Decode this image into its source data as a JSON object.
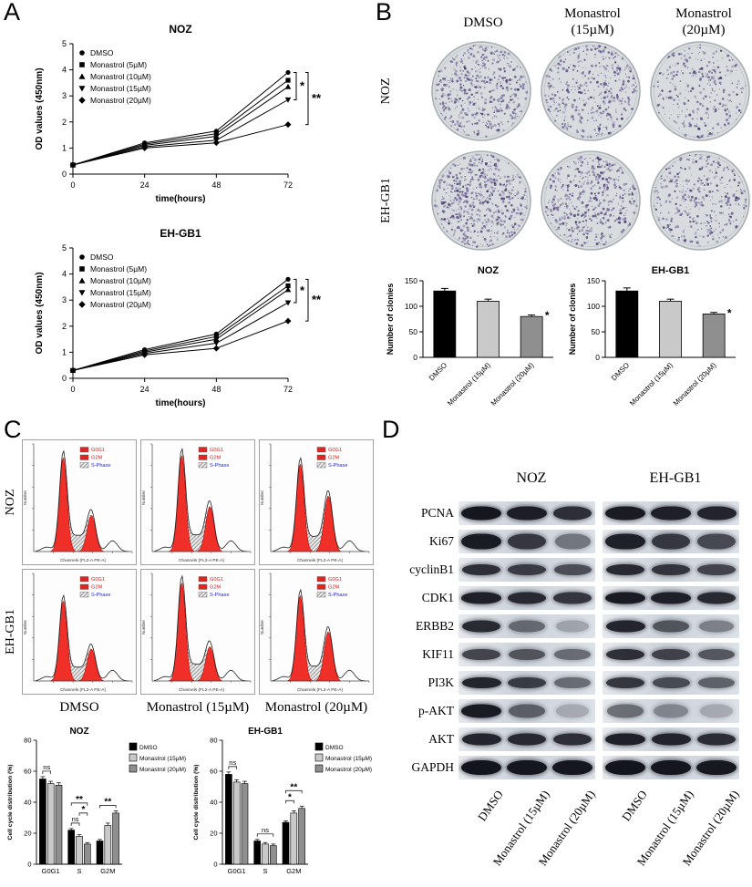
{
  "figure": {
    "background": "#ffffff",
    "panels": {
      "A": {
        "label": "A"
      },
      "B": {
        "label": "B",
        "column_headers": [
          "DMSO",
          "Monastrol\n(15µM)",
          "Monastrol\n(20µM)"
        ],
        "row_labels": [
          "NOZ",
          "EH-GB1"
        ],
        "dishes": [
          {
            "row": "NOZ",
            "col": "DMSO",
            "density": 520
          },
          {
            "row": "NOZ",
            "col": "Monastrol (15µM)",
            "density": 430
          },
          {
            "row": "NOZ",
            "col": "Monastrol (20µM)",
            "density": 310
          },
          {
            "row": "EH-GB1",
            "col": "DMSO",
            "density": 620
          },
          {
            "row": "EH-GB1",
            "col": "Monastrol (15µM)",
            "density": 520
          },
          {
            "row": "EH-GB1",
            "col": "Monastrol (20µM)",
            "density": 390
          }
        ]
      },
      "C": {
        "label": "C",
        "row_labels": [
          "NOZ",
          "EH-GB1"
        ],
        "column_labels": [
          "DMSO",
          "Monastrol (15µM)",
          "Monastrol (20µM)"
        ],
        "flow": {
          "legend": [
            {
              "label": "G0G1",
              "swatch": "solid",
              "color": "#e02420"
            },
            {
              "label": "G2M",
              "swatch": "solid",
              "color": "#e02420"
            },
            {
              "label": "S-Phase",
              "swatch": "hatch",
              "color": "#2626cc"
            }
          ],
          "xlabel": "Channels (FL2-A PE-A)",
          "ylabel": "Number",
          "cells": [
            {
              "row": "NOZ",
              "col": "DMSO",
              "g1": 0.88,
              "g2": 0.34
            },
            {
              "row": "NOZ",
              "col": "Monastrol (15µM)",
              "g1": 0.9,
              "g2": 0.42
            },
            {
              "row": "NOZ",
              "col": "Monastrol (20µM)",
              "g1": 0.82,
              "g2": 0.52
            },
            {
              "row": "EH-GB1",
              "col": "DMSO",
              "g1": 0.75,
              "g2": 0.3
            },
            {
              "row": "EH-GB1",
              "col": "Monastrol (15µM)",
              "g1": 0.92,
              "g2": 0.32
            },
            {
              "row": "EH-GB1",
              "col": "Monastrol (20µM)",
              "g1": 0.8,
              "g2": 0.46
            }
          ]
        }
      },
      "D": {
        "label": "D",
        "group_labels": [
          "NOZ",
          "EH-GB1"
        ],
        "lane_labels": [
          "DMSO",
          "Monastrol (15µM)",
          "Monastrol (20µM)"
        ],
        "proteins": [
          {
            "name": "PCNA",
            "band_height": 15,
            "noz": [
              0.97,
              0.93,
              0.85
            ],
            "ehgb1": [
              0.95,
              0.92,
              0.9
            ]
          },
          {
            "name": "Ki67",
            "band_height": 17,
            "noz": [
              0.95,
              0.8,
              0.5
            ],
            "ehgb1": [
              0.92,
              0.8,
              0.72
            ]
          },
          {
            "name": "cyclinB1",
            "band_height": 12,
            "noz": [
              0.85,
              0.78,
              0.7
            ],
            "ehgb1": [
              0.88,
              0.82,
              0.75
            ]
          },
          {
            "name": "CDK1",
            "band_height": 13,
            "noz": [
              0.92,
              0.88,
              0.82
            ],
            "ehgb1": [
              0.95,
              0.92,
              0.88
            ]
          },
          {
            "name": "ERBB2",
            "band_height": 13,
            "noz": [
              0.88,
              0.55,
              0.28
            ],
            "ehgb1": [
              0.9,
              0.65,
              0.45
            ]
          },
          {
            "name": "KIF11",
            "band_height": 12,
            "noz": [
              0.75,
              0.65,
              0.55
            ],
            "ehgb1": [
              0.85,
              0.75,
              0.65
            ]
          },
          {
            "name": "PI3K",
            "band_height": 12,
            "noz": [
              0.9,
              0.78,
              0.55
            ],
            "ehgb1": [
              0.82,
              0.7,
              0.6
            ]
          },
          {
            "name": "p-AKT",
            "band_height": 15,
            "noz": [
              0.95,
              0.6,
              0.25
            ],
            "ehgb1": [
              0.55,
              0.4,
              0.25
            ]
          },
          {
            "name": "AKT",
            "band_height": 13,
            "noz": [
              0.9,
              0.88,
              0.85
            ],
            "ehgb1": [
              0.92,
              0.9,
              0.86
            ]
          },
          {
            "name": "GAPDH",
            "band_height": 16,
            "noz": [
              0.98,
              0.97,
              0.97
            ],
            "ehgb1": [
              0.98,
              0.97,
              0.96
            ]
          }
        ]
      }
    }
  },
  "chart_data": [
    {
      "id": "A-NOZ",
      "type": "line",
      "title": "NOZ",
      "xlabel": "time(hours)",
      "ylabel": "OD values (450nm)",
      "x": [
        0,
        24,
        48,
        72
      ],
      "xticks": [
        0,
        24,
        48,
        72
      ],
      "ylim": [
        0,
        5
      ],
      "yticks": [
        0,
        1,
        2,
        3,
        4,
        5
      ],
      "series": [
        {
          "name": "DMSO",
          "marker": "circle",
          "values": [
            0.35,
            1.2,
            1.65,
            3.9
          ]
        },
        {
          "name": "Monastrol (5µM)",
          "marker": "square",
          "values": [
            0.35,
            1.15,
            1.55,
            3.6
          ]
        },
        {
          "name": "Monastrol (10µM)",
          "marker": "triangle-up",
          "values": [
            0.35,
            1.1,
            1.45,
            3.35
          ]
        },
        {
          "name": "Monastrol (15µM)",
          "marker": "triangle-down",
          "values": [
            0.35,
            1.05,
            1.3,
            2.85
          ]
        },
        {
          "name": "Monastrol (20µM)",
          "marker": "diamond",
          "values": [
            0.35,
            1.0,
            1.2,
            1.9
          ]
        }
      ],
      "significance": [
        {
          "from_series": 0,
          "to_series": 3,
          "label": "*"
        },
        {
          "from_series": 0,
          "to_series": 4,
          "label": "**"
        }
      ]
    },
    {
      "id": "A-EH-GB1",
      "type": "line",
      "title": "EH-GB1",
      "xlabel": "time(hours)",
      "ylabel": "OD values (450nm)",
      "x": [
        0,
        24,
        48,
        72
      ],
      "xticks": [
        0,
        24,
        48,
        72
      ],
      "ylim": [
        0,
        5
      ],
      "yticks": [
        0,
        1,
        2,
        3,
        4,
        5
      ],
      "series": [
        {
          "name": "DMSO",
          "marker": "circle",
          "values": [
            0.3,
            1.1,
            1.7,
            3.8
          ]
        },
        {
          "name": "Monastrol (5µM)",
          "marker": "square",
          "values": [
            0.3,
            1.05,
            1.6,
            3.55
          ]
        },
        {
          "name": "Monastrol (10µM)",
          "marker": "triangle-up",
          "values": [
            0.3,
            1.0,
            1.5,
            3.4
          ]
        },
        {
          "name": "Monastrol (15µM)",
          "marker": "triangle-down",
          "values": [
            0.3,
            0.95,
            1.35,
            2.9
          ]
        },
        {
          "name": "Monastrol (20µM)",
          "marker": "diamond",
          "values": [
            0.3,
            0.9,
            1.15,
            2.2
          ]
        }
      ],
      "significance": [
        {
          "from_series": 0,
          "to_series": 3,
          "label": "*"
        },
        {
          "from_series": 0,
          "to_series": 4,
          "label": "**"
        }
      ]
    },
    {
      "id": "B-NOZ",
      "type": "bar",
      "title": "NOZ",
      "ylabel": "Number of clonies",
      "ylim": [
        0,
        150
      ],
      "yticks": [
        0,
        50,
        100,
        150
      ],
      "categories": [
        "DMSO",
        "Monastrol (15µM)",
        "Monastrol (20µM)"
      ],
      "values": [
        130,
        110,
        80
      ],
      "errors": [
        5,
        4,
        3
      ],
      "stars": [
        "",
        "",
        "*"
      ],
      "colors": [
        "#000000",
        "#c9c9c9",
        "#8f8f8f"
      ]
    },
    {
      "id": "B-EH-GB1",
      "type": "bar",
      "title": "EH-GB1",
      "ylabel": "Number of clonies",
      "ylim": [
        0,
        150
      ],
      "yticks": [
        0,
        50,
        100,
        150
      ],
      "categories": [
        "DMSO",
        "Monastrol (15µM)",
        "Monastrol (20µM)"
      ],
      "values": [
        130,
        110,
        85
      ],
      "errors": [
        6,
        4,
        3
      ],
      "stars": [
        "",
        "",
        "*"
      ],
      "colors": [
        "#000000",
        "#c9c9c9",
        "#8f8f8f"
      ]
    },
    {
      "id": "C-NOZ",
      "type": "grouped-bar",
      "title": "NOZ",
      "ylabel": "Cell cycle distribution (%)",
      "ylim": [
        0,
        80
      ],
      "yticks": [
        0,
        20,
        40,
        60,
        80
      ],
      "categories": [
        "G0G1",
        "S",
        "G2M"
      ],
      "colors": [
        "#000000",
        "#c9c9c9",
        "#8f8f8f"
      ],
      "series": [
        {
          "name": "DMSO",
          "values": [
            55,
            22,
            15
          ],
          "errors": [
            1.5,
            1,
            1
          ]
        },
        {
          "name": "Monastrol (15µM)",
          "values": [
            52,
            18,
            25
          ],
          "errors": [
            1.5,
            1,
            1.5
          ]
        },
        {
          "name": "Monastrol (20µM)",
          "values": [
            51,
            13,
            33
          ],
          "errors": [
            1.5,
            1,
            1.5
          ]
        }
      ],
      "annotations": [
        [
          {
            "span": [
              0,
              1
            ],
            "label": "ns"
          }
        ],
        [
          {
            "span": [
              0,
              1
            ],
            "label": "ns"
          },
          {
            "span": [
              1,
              2
            ],
            "label": "*"
          },
          {
            "span": [
              0,
              2
            ],
            "label": "**"
          }
        ],
        [
          {
            "span": [
              0,
              2
            ],
            "label": "**"
          }
        ]
      ]
    },
    {
      "id": "C-EH-GB1",
      "type": "grouped-bar",
      "title": "EH-GB1",
      "ylabel": "Cell cycle distribution (%)",
      "ylim": [
        0,
        80
      ],
      "yticks": [
        0,
        20,
        40,
        60,
        80
      ],
      "categories": [
        "G0G1",
        "S",
        "G2M"
      ],
      "colors": [
        "#000000",
        "#c9c9c9",
        "#8f8f8f"
      ],
      "series": [
        {
          "name": "DMSO",
          "values": [
            58,
            15,
            27
          ],
          "errors": [
            1.5,
            1,
            1
          ]
        },
        {
          "name": "Monastrol (15µM)",
          "values": [
            53,
            13,
            33
          ],
          "errors": [
            1.5,
            1,
            1.5
          ]
        },
        {
          "name": "Monastrol (20µM)",
          "values": [
            52,
            12,
            36
          ],
          "errors": [
            1.5,
            1,
            1.5
          ]
        }
      ],
      "annotations": [
        [
          {
            "span": [
              0,
              1
            ],
            "label": "ns"
          }
        ],
        [
          {
            "span": [
              0,
              2
            ],
            "label": "ns"
          }
        ],
        [
          {
            "span": [
              0,
              1
            ],
            "label": "*"
          },
          {
            "span": [
              0,
              2
            ],
            "label": "**"
          }
        ]
      ]
    }
  ]
}
